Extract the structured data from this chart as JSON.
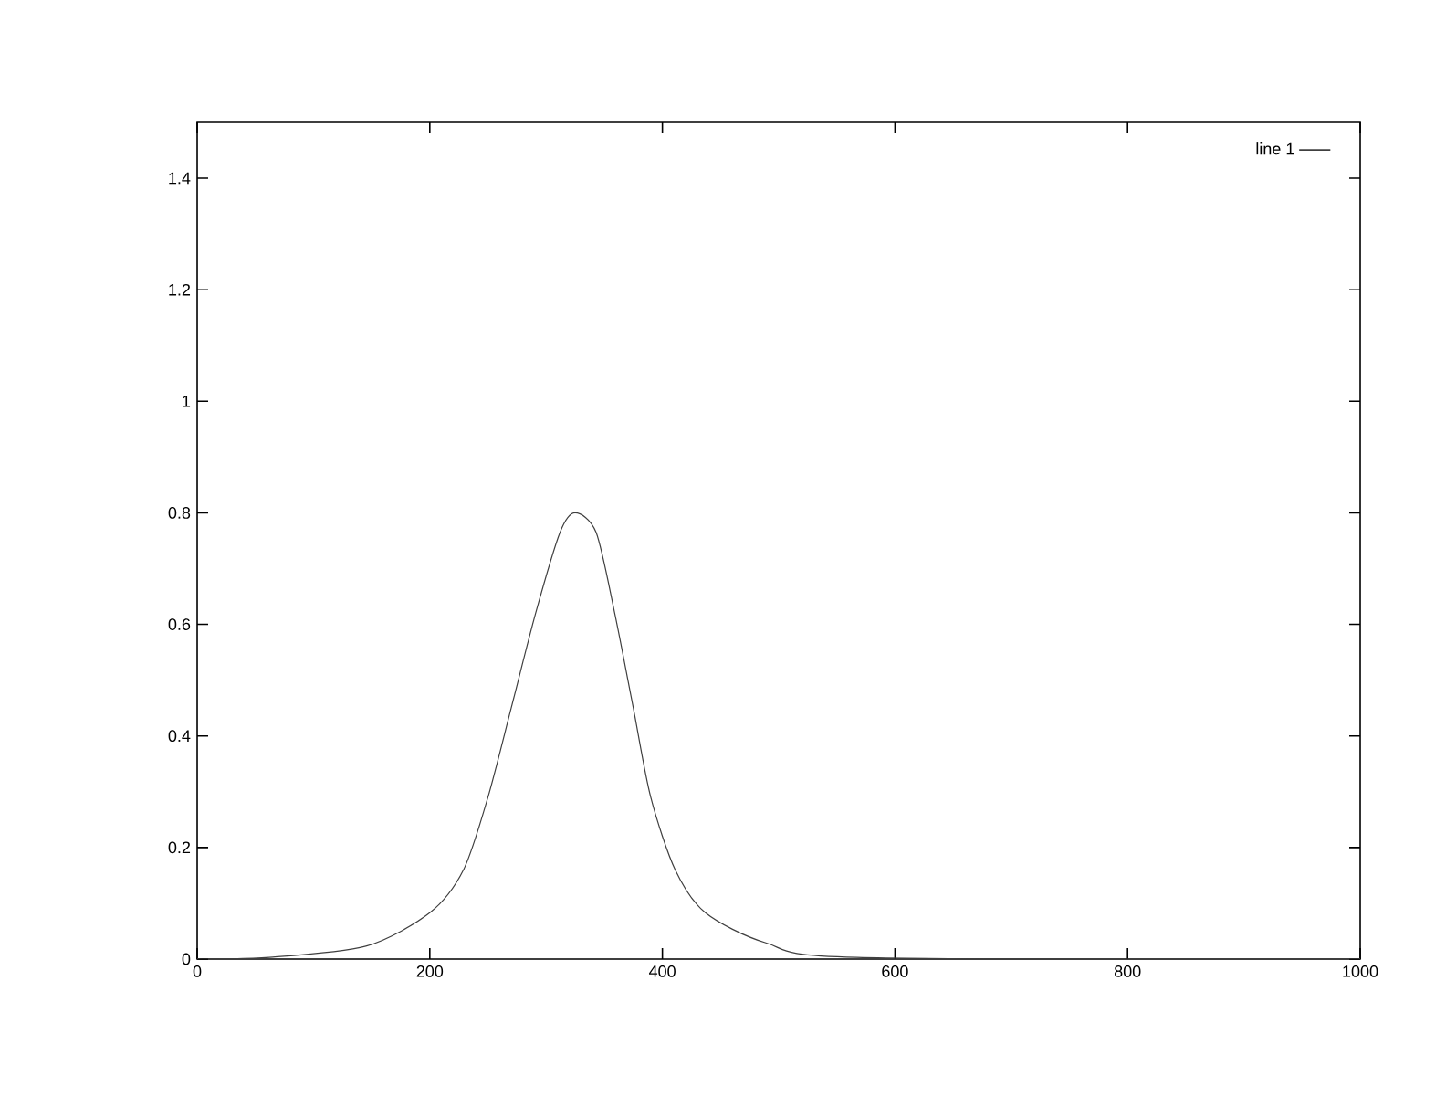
{
  "chart_data": {
    "type": "line",
    "x": [
      0,
      62,
      145,
      200,
      229,
      250,
      270,
      291,
      312,
      325,
      343,
      359,
      375,
      390,
      411,
      437,
      489,
      567,
      1000
    ],
    "series": [
      {
        "name": "line 1",
        "color": "#404040",
        "values": [
          0,
          0.003,
          0.023,
          0.083,
          0.16,
          0.29,
          0.45,
          0.62,
          0.765,
          0.8,
          0.765,
          0.62,
          0.45,
          0.29,
          0.16,
          0.083,
          0.029,
          0.003,
          0
        ]
      }
    ],
    "xlim": [
      0,
      1000
    ],
    "ylim": [
      0,
      1.5
    ],
    "xticks": [
      0,
      200,
      400,
      600,
      800,
      1000
    ],
    "yticks": [
      0,
      0.2,
      0.4,
      0.6,
      0.8,
      1,
      1.2,
      1.4
    ],
    "grid": false,
    "legend": "top right",
    "marker": "none",
    "line_style": "solid"
  }
}
